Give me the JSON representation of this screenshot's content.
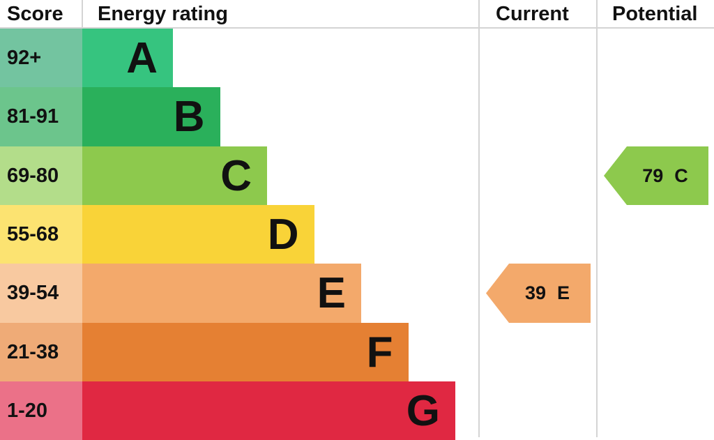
{
  "chart_data": {
    "type": "bar",
    "headers": {
      "score": "Score",
      "rating": "Energy rating",
      "current": "Current",
      "potential": "Potential"
    },
    "bands": [
      {
        "letter": "A",
        "range": "92+",
        "color": "#36c47f",
        "score_color": "#73c4a0"
      },
      {
        "letter": "B",
        "range": "81-91",
        "color": "#2ab05b",
        "score_color": "#6cc58c"
      },
      {
        "letter": "C",
        "range": "69-80",
        "color": "#8dc94d",
        "score_color": "#b3dd8a"
      },
      {
        "letter": "D",
        "range": "55-68",
        "color": "#f9d338",
        "score_color": "#fce371"
      },
      {
        "letter": "E",
        "range": "39-54",
        "color": "#f3a96b",
        "score_color": "#f8c9a0"
      },
      {
        "letter": "F",
        "range": "21-38",
        "color": "#e58033",
        "score_color": "#efab77"
      },
      {
        "letter": "G",
        "range": "1-20",
        "color": "#e02842",
        "score_color": "#eb7188"
      }
    ],
    "current": {
      "value": "39",
      "letter": "E",
      "color": "#f3a96b"
    },
    "potential": {
      "value": "79",
      "letter": "C",
      "color": "#8dc94d"
    }
  }
}
